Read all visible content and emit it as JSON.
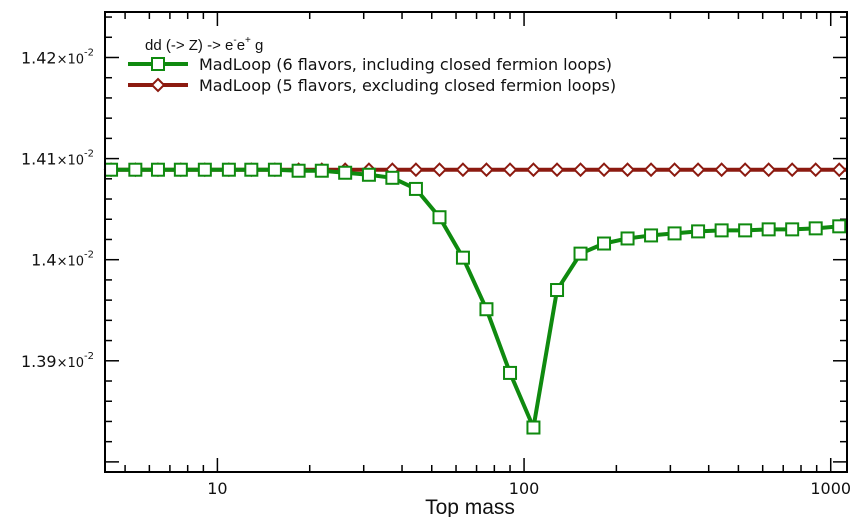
{
  "chart_data": {
    "type": "line",
    "xlabel": "Top mass",
    "ylabel": "",
    "xscale": "log",
    "xlim": [
      4.3,
      1130
    ],
    "ylim": [
      0.01379,
      0.014245
    ],
    "xticks": [
      {
        "value": 10,
        "label": "10"
      },
      {
        "value": 100,
        "label": "100"
      },
      {
        "value": 1000,
        "label": "1000"
      }
    ],
    "yticks": [
      {
        "value": 0.0139,
        "mantissa": "1.39",
        "base": "×10",
        "exp": "-2"
      },
      {
        "value": 0.014,
        "mantissa": "1.4",
        "base": "×10",
        "exp": "-2"
      },
      {
        "value": 0.0141,
        "mantissa": "1.41",
        "base": "×10",
        "exp": "-2"
      },
      {
        "value": 0.0142,
        "mantissa": "1.42",
        "base": "×10",
        "exp": "-2"
      }
    ],
    "legend": {
      "placement": "top-left",
      "title_parts": {
        "main": "dd (-> Z) -> e",
        "sup1": "-",
        "mid": "e",
        "sup2": "+",
        "end": " g"
      }
    },
    "series": [
      {
        "name": "MadLoop (6 flavors, including closed fermion loops)",
        "color": "#0f8a0f",
        "marker": "square",
        "x": [
          4.5,
          5.4,
          6.4,
          7.6,
          9.1,
          10.9,
          12.9,
          15.4,
          18.4,
          21.9,
          26.1,
          31.2,
          37.2,
          44.4,
          53.0,
          63.2,
          75.4,
          90.0,
          107.3,
          128.1,
          152.8,
          182.3,
          217.5,
          259.5,
          309.6,
          369.4,
          440.8,
          525.9,
          627.5,
          748.7,
          893.3,
          1066.0
        ],
        "y": [
          0.014089,
          0.014089,
          0.014089,
          0.014089,
          0.014089,
          0.014089,
          0.014089,
          0.014089,
          0.014088,
          0.014088,
          0.014086,
          0.014084,
          0.014081,
          0.01407,
          0.014042,
          0.014002,
          0.013951,
          0.013888,
          0.013834,
          0.01397,
          0.014006,
          0.014016,
          0.014021,
          0.014024,
          0.014026,
          0.014028,
          0.014029,
          0.014029,
          0.01403,
          0.01403,
          0.014031,
          0.014033
        ]
      },
      {
        "name": "MadLoop (5 flavors, excluding closed fermion loops)",
        "color": "#8c1a10",
        "marker": "diamond",
        "x": [
          4.5,
          5.4,
          6.4,
          7.6,
          9.1,
          10.9,
          12.9,
          15.4,
          18.4,
          21.9,
          26.1,
          31.2,
          37.2,
          44.4,
          53.0,
          63.2,
          75.4,
          90.0,
          107.3,
          128.1,
          152.8,
          182.3,
          217.5,
          259.5,
          309.6,
          369.4,
          440.8,
          525.9,
          627.5,
          748.7,
          893.3,
          1066.0
        ],
        "y": [
          0.014089,
          0.014089,
          0.014089,
          0.014089,
          0.014089,
          0.014089,
          0.014089,
          0.014089,
          0.014089,
          0.014089,
          0.014089,
          0.014089,
          0.014089,
          0.014089,
          0.014089,
          0.014089,
          0.014089,
          0.014089,
          0.014089,
          0.014089,
          0.014089,
          0.014089,
          0.014089,
          0.014089,
          0.014089,
          0.014089,
          0.014089,
          0.014089,
          0.014089,
          0.014089,
          0.014089,
          0.014089
        ]
      }
    ]
  }
}
